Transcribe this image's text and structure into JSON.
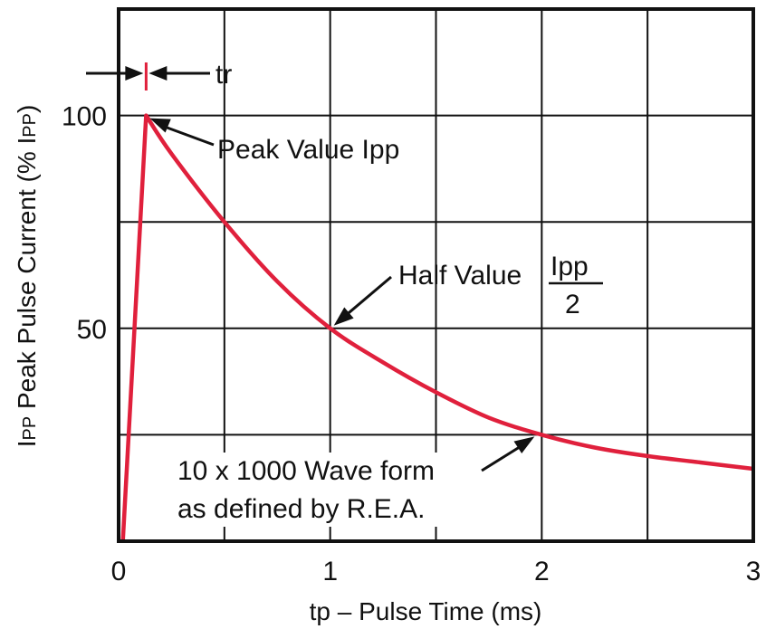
{
  "chart_data": {
    "type": "line",
    "title": "",
    "xlabel": "tp – Pulse Time (ms)",
    "ylabel_prefix": "I",
    "ylabel_sub1": "PP",
    "ylabel_mid": " Peak Pulse Current (% I",
    "ylabel_sub2": "PP",
    "ylabel_end": ")",
    "xlim": [
      0,
      3
    ],
    "ylim": [
      0,
      125
    ],
    "xticks": [
      0,
      1,
      2,
      3
    ],
    "xtick_labels": [
      "0",
      "1",
      "2",
      "3"
    ],
    "yticks": [
      50,
      100
    ],
    "ytick_labels": [
      "50",
      "100"
    ],
    "x_gridlines": [
      0.5,
      1,
      1.5,
      2,
      2.5
    ],
    "y_gridlines": [
      25,
      50,
      75,
      100
    ],
    "grid": true,
    "series": [
      {
        "color": "#e0203c",
        "x": [
          0.02,
          0.13,
          0.25,
          0.5,
          0.75,
          1.0,
          1.25,
          1.5,
          1.75,
          2.0,
          2.25,
          2.5,
          2.75,
          3.0
        ],
        "y": [
          0,
          100,
          91,
          75,
          61,
          50,
          42,
          35,
          29,
          25,
          22,
          20,
          18.5,
          17
        ]
      }
    ],
    "annotations": {
      "tr": {
        "label": "tr",
        "x": 0.13
      },
      "peak": {
        "label": "Peak Value Ipp",
        "x": 0.13,
        "y": 100
      },
      "half": {
        "label": "Half Value",
        "numerator": "Ipp",
        "denominator": "2",
        "x": 1.0,
        "y": 50
      },
      "wave": {
        "line1": "10 x 1000 Wave form",
        "line2": "as defined by R.E.A.",
        "x": 2.0,
        "y": 25
      }
    }
  }
}
